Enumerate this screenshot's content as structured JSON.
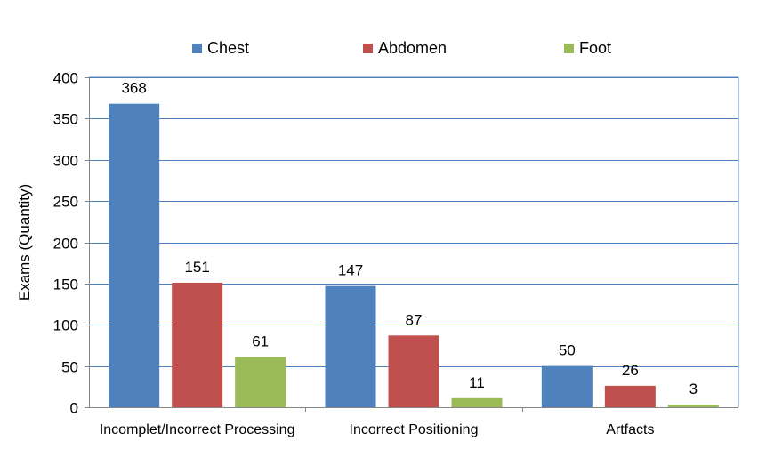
{
  "chart_data": {
    "type": "bar",
    "categories": [
      "Incomplet/Incorrect Processing",
      "Incorrect Positioning",
      "Artfacts"
    ],
    "series": [
      {
        "name": "Chest",
        "values": [
          368,
          147,
          50
        ],
        "color": "#4F81BD"
      },
      {
        "name": "Abdomen",
        "values": [
          151,
          87,
          26
        ],
        "color": "#C0504D"
      },
      {
        "name": "Foot",
        "values": [
          61,
          11,
          3
        ],
        "color": "#9BBB59"
      }
    ],
    "title": "",
    "xlabel": "",
    "ylabel": "Exams (Quantity)",
    "ylim": [
      0,
      400
    ],
    "yticks": [
      0,
      50,
      100,
      150,
      200,
      250,
      300,
      350,
      400
    ],
    "grid": true,
    "legend_position": "top"
  }
}
